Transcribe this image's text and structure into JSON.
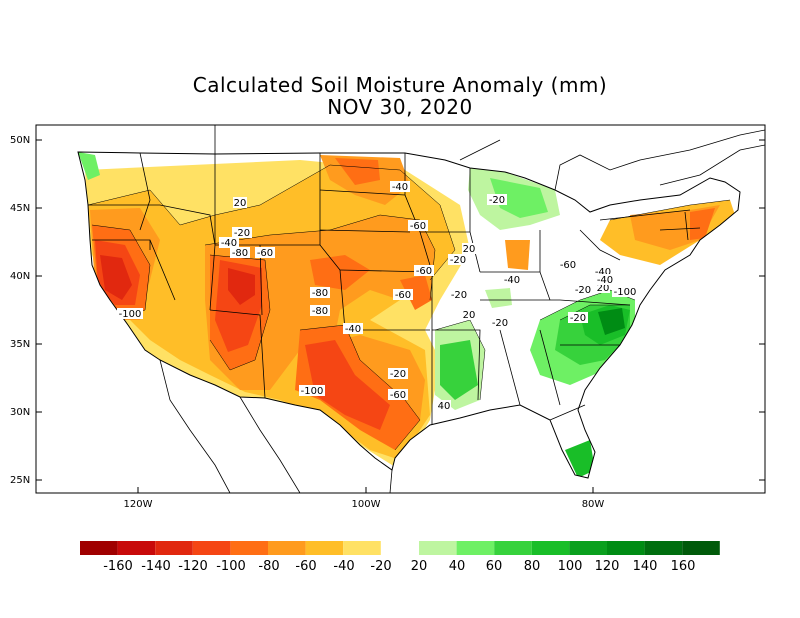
{
  "title_line1": "Calculated Soil Moisture Anomaly (mm)",
  "title_line2": "NOV 30, 2020",
  "lat_labels": [
    "50N",
    "45N",
    "40N",
    "35N",
    "30N",
    "25N"
  ],
  "lon_labels": [
    "120W",
    "100W",
    "80W"
  ],
  "contour_labels": [
    "-20",
    "-40",
    "-80",
    "-60",
    "-60",
    "-40",
    "-60",
    "-20",
    "-60",
    "-20",
    "-80",
    "-80",
    "-40",
    "-100",
    "-20",
    "-60",
    "-100",
    "20",
    "20",
    "-40",
    "-20",
    "-20",
    "-60",
    "-40",
    "-20",
    "20",
    "-100",
    "20",
    "40",
    "-20",
    "-40"
  ],
  "legend": {
    "labels": [
      "-160",
      "-140",
      "-120",
      "-100",
      "-80",
      "-60",
      "-40",
      "-20",
      "20",
      "40",
      "60",
      "80",
      "100",
      "120",
      "140",
      "160"
    ],
    "negative_colors": [
      "#a00000",
      "#c80a0a",
      "#e1280f",
      "#f54614",
      "#ff6e14",
      "#ff9b1e",
      "#ffbe28",
      "#ffe164"
    ],
    "positive_colors": [
      "#bef5a0",
      "#6ef064",
      "#37d23c",
      "#19be28",
      "#0aa01e",
      "#008c14",
      "#006e0f",
      "#005a0a"
    ]
  }
}
